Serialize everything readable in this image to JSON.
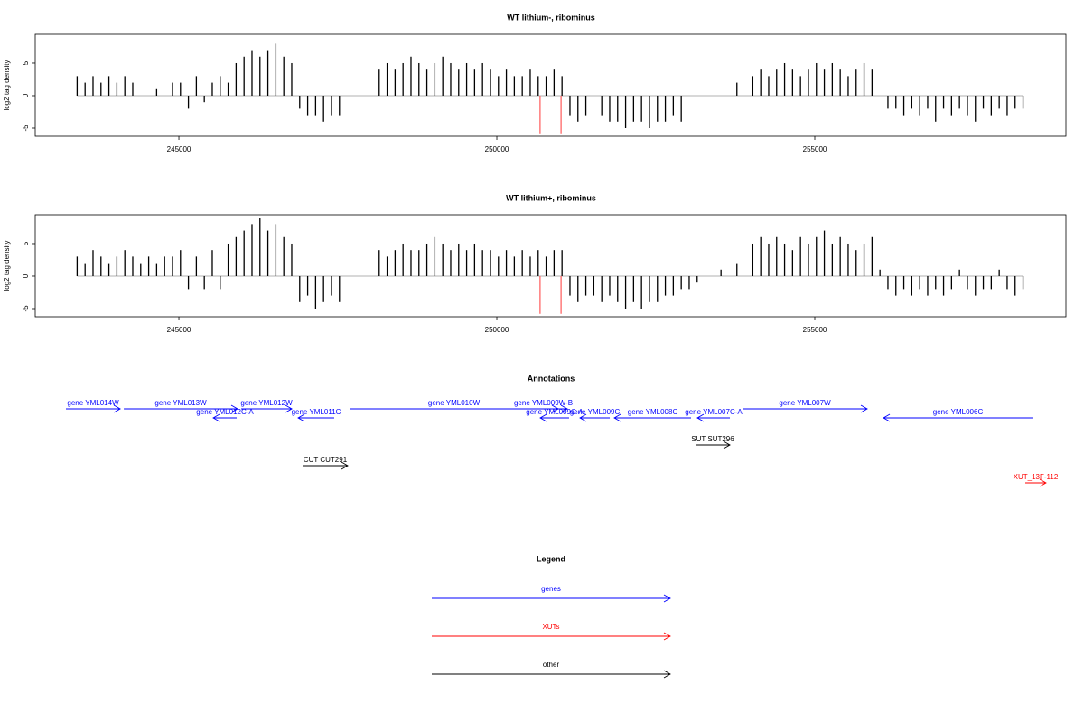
{
  "chart_data": [
    {
      "type": "bar",
      "title": "WT lithium-, ribominus",
      "ylabel": "log2 tag density",
      "xlim": [
        242741,
        258949
      ],
      "xticks": [
        245000,
        250000,
        255000
      ],
      "ylim": [
        -6.25,
        9.44
      ],
      "yticks": [
        -5,
        0,
        5
      ],
      "x_start": 243400,
      "x_step": 125,
      "series": [
        {
          "color": "#000000",
          "values": [
            3,
            2,
            3,
            2,
            3,
            2,
            3,
            2,
            0,
            0,
            1,
            0,
            2,
            2,
            -2,
            3,
            -1,
            2,
            3,
            2,
            5,
            6,
            7,
            6,
            7,
            8,
            6,
            5,
            -2,
            -3,
            -3,
            -4,
            -3,
            -3,
            0,
            0,
            0,
            0,
            4,
            5,
            4,
            5,
            6,
            5,
            4,
            5,
            6,
            5,
            4,
            5,
            4,
            5,
            4,
            3,
            4,
            3,
            3,
            4,
            3,
            3,
            4,
            3,
            -3,
            -4,
            -3,
            0,
            -3,
            -4,
            -4,
            -5,
            -4,
            -4,
            -5,
            -4,
            -4,
            -3,
            -4,
            0,
            0,
            0,
            0,
            0,
            0,
            2,
            0,
            3,
            4,
            3,
            4,
            5,
            4,
            3,
            4,
            5,
            4,
            5,
            4,
            3,
            4,
            5,
            4,
            0,
            -2,
            -2,
            -3,
            -2,
            -3,
            -2,
            -4,
            -2,
            -3,
            -2,
            -3,
            -4,
            -2,
            -3,
            -2,
            -3,
            -2,
            -2
          ]
        },
        {
          "color": "#ff6666",
          "x": [
            250680,
            251010
          ],
          "values": [
            -5.8,
            -5.8
          ]
        }
      ]
    },
    {
      "type": "bar",
      "title": "WT lithium+, ribominus",
      "ylabel": "log2 tag density",
      "xlim": [
        242741,
        258949
      ],
      "xticks": [
        245000,
        250000,
        255000
      ],
      "ylim": [
        -6.25,
        9.44
      ],
      "yticks": [
        -5,
        0,
        5
      ],
      "x_start": 243400,
      "x_step": 125,
      "series": [
        {
          "color": "#000000",
          "values": [
            3,
            2,
            4,
            3,
            2,
            3,
            4,
            3,
            2,
            3,
            2,
            3,
            3,
            4,
            -2,
            3,
            -2,
            4,
            -2,
            5,
            6,
            7,
            8,
            9,
            7,
            8,
            6,
            5,
            -4,
            -3,
            -5,
            -4,
            -3,
            -4,
            0,
            0,
            0,
            0,
            4,
            3,
            4,
            5,
            4,
            4,
            5,
            6,
            5,
            4,
            5,
            4,
            5,
            4,
            4,
            3,
            4,
            3,
            4,
            3,
            4,
            3,
            4,
            4,
            -3,
            -4,
            -3,
            -3,
            -4,
            -3,
            -4,
            -5,
            -4,
            -5,
            -4,
            -4,
            -3,
            -3,
            -2,
            -2,
            -1,
            0,
            0,
            1,
            0,
            2,
            0,
            5,
            6,
            5,
            6,
            5,
            4,
            6,
            5,
            6,
            7,
            5,
            6,
            5,
            4,
            5,
            6,
            1,
            -2,
            -3,
            -2,
            -3,
            -2,
            -3,
            -2,
            -3,
            -2,
            1,
            -2,
            -3,
            -2,
            -2,
            1,
            -2,
            -3,
            -2
          ]
        },
        {
          "color": "#ff6666",
          "x": [
            250680,
            251010
          ],
          "values": [
            -5.8,
            -5.8
          ]
        }
      ]
    }
  ],
  "annotations": {
    "title": "Annotations",
    "features": [
      {
        "label": "gene YML014W",
        "start": 243224,
        "end": 244077,
        "strand": "+",
        "color": "#0000ff"
      },
      {
        "label": "gene YML013W",
        "start": 244134,
        "end": 245923,
        "strand": "+",
        "color": "#0000ff"
      },
      {
        "label": "gene YML012C-A",
        "start": 245540,
        "end": 245909,
        "strand": "-",
        "color": "#0000ff"
      },
      {
        "label": "gene YML012W",
        "start": 245980,
        "end": 246776,
        "strand": "+",
        "color": "#0000ff"
      },
      {
        "label": "gene YML011C",
        "start": 246875,
        "end": 247443,
        "strand": "-",
        "color": "#0000ff"
      },
      {
        "label": "gene YML010W",
        "start": 247685,
        "end": 250966,
        "strand": "+",
        "color": "#0000ff"
      },
      {
        "label": "gene YML009W-B",
        "start": 250355,
        "end": 251108,
        "strand": "+",
        "color": "#0000ff"
      },
      {
        "label": "gene YML009C-A",
        "start": 250682,
        "end": 251136,
        "strand": "-",
        "color": "#0000ff"
      },
      {
        "label": "gene YML009C",
        "start": 251307,
        "end": 251776,
        "strand": "-",
        "color": "#0000ff"
      },
      {
        "label": "gene YML008C",
        "start": 251847,
        "end": 253054,
        "strand": "-",
        "color": "#0000ff"
      },
      {
        "label": "gene YML007C-A",
        "start": 253153,
        "end": 253665,
        "strand": "-",
        "color": "#0000ff"
      },
      {
        "label": "gene YML007W",
        "start": 253864,
        "end": 255824,
        "strand": "+",
        "color": "#0000ff"
      },
      {
        "label": "gene YML006C",
        "start": 256080,
        "end": 258423,
        "strand": "-",
        "color": "#0000ff"
      },
      {
        "label": "CUT CUT291",
        "start": 246946,
        "end": 247656,
        "strand": "+",
        "color": "#000000"
      },
      {
        "label": "SUT SUT296",
        "start": 253125,
        "end": 253665,
        "strand": "+",
        "color": "#000000"
      },
      {
        "label": "XUT_13F-112",
        "start": 258310,
        "end": 258636,
        "strand": "+",
        "color": "#ff0000"
      }
    ]
  },
  "legend": {
    "title": "Legend",
    "entries": [
      {
        "label": "genes",
        "color": "#0000ff"
      },
      {
        "label": "XUTs",
        "color": "#ff0000"
      },
      {
        "label": "other",
        "color": "#000000"
      }
    ]
  }
}
